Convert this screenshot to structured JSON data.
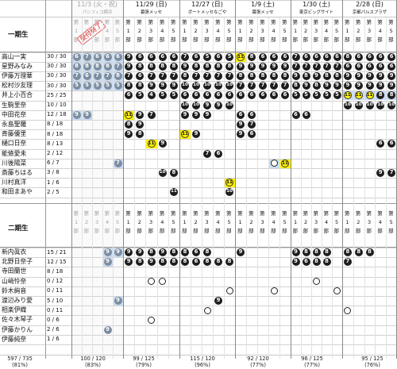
{
  "colors": {
    "blue_cell": "#c9dcf2",
    "yellow_cell": "#fff200",
    "grey_marker": "#7c8da0",
    "dark_marker": "#1e1e1e",
    "completed_text": "#a2a2a2",
    "grid_line": "#999999",
    "text": "#111111"
  },
  "events": [
    {
      "date": "11/3 (火・祝)",
      "venue": "パシフィコ横浜",
      "completed": true
    },
    {
      "date": "11/29 (日)",
      "venue": "幕張メッセ",
      "completed": false
    },
    {
      "date": "12/27 (日)",
      "venue": "ポートメッセなごや",
      "completed": false
    },
    {
      "date": "1/9 (土)",
      "venue": "幕張メッセ",
      "completed": false
    },
    {
      "date": "1/30 (土)",
      "venue": "東京ビッグサイト",
      "completed": false
    },
    {
      "date": "2/28 (日)",
      "venue": "京都パルスプラザ",
      "completed": false
    }
  ],
  "stamp_text": "受付終了",
  "part_label_chars": [
    "第",
    "1",
    "部"
  ],
  "part_numbers": [
    "1",
    "2",
    "3",
    "4",
    "5"
  ],
  "cell_legend": {
    "n": "number",
    "o": "open",
    "b": "blue",
    "y": "yellow"
  },
  "groups": [
    {
      "label": "一期生",
      "members": [
        {
          "name": "高山一実",
          "count": "30 / 30",
          "cells": [
            "g6:b",
            "g7:b",
            "g6:b",
            "g6:b",
            "g6:b",
            "n9",
            "n6",
            "n6",
            "n6",
            "n6",
            "n7",
            "n6",
            "n5",
            "n6",
            "n5",
            "ny11",
            "n8",
            "n6",
            "n6",
            "n6",
            "n7",
            "n6",
            "n6",
            "n6",
            "n6",
            "n8",
            "n6",
            "n6",
            "n6",
            "n6"
          ]
        },
        {
          "name": "星野みなみ",
          "count": "30 / 30",
          "cells": [
            "g8:b",
            "g8:b",
            "g8:b",
            "g8:b",
            "g7:b",
            "n9",
            "n8",
            "n8",
            "n8",
            "n8",
            "n9",
            "n8",
            "n8",
            "n8",
            "n8",
            "n9",
            "n9",
            "n9",
            "n9",
            "n9",
            "n7",
            "n7",
            "n7",
            "n7",
            "n7",
            "n6",
            "n6",
            "n6",
            "n6",
            "n6"
          ]
        },
        {
          "name": "伊藤万理華",
          "count": "30 / 30",
          "cells": [
            "g7:b",
            "g6:b",
            "g7:b",
            "g7:b",
            "g8:b",
            "n7",
            "n6",
            "n7",
            "n7",
            "n7",
            "n8",
            "n7",
            "n7",
            "n7",
            "n7",
            "n8",
            "n8",
            "n8",
            "n8",
            "n8",
            "n9",
            "n8",
            "n9",
            "n8",
            "n8",
            "n9",
            "n9",
            "n9",
            "n9",
            "n9"
          ]
        },
        {
          "name": "松村沙友理",
          "count": "30 / 30",
          "cells": [
            "g5:b",
            "g5:b",
            "g5:b",
            "g5:b",
            "g5:b",
            "n8",
            "n8",
            "n9",
            "n9",
            "n9",
            "n10",
            "n10",
            "n10",
            "n10",
            "n10",
            "n7",
            "n7",
            "n7",
            "n7",
            "n7",
            "n8",
            "n9",
            "n8",
            "n9",
            "n9",
            "n9",
            "n9",
            "n9",
            "n9",
            "n9"
          ]
        },
        {
          "name": "井上小百合",
          "count": "25 / 25",
          "cells": [
            "",
            "",
            "",
            "",
            "",
            "n6",
            "n5",
            "n4",
            "n5",
            "n5",
            "n6",
            "n6",
            "n6",
            "n6",
            "n6",
            "n6",
            "n6",
            "n6",
            "n6",
            "n6",
            "n5",
            "n5",
            "n5",
            "n5",
            "n5",
            "ny11:b",
            "ny11:b",
            "ny11:b",
            "n8:b",
            "n8:b"
          ]
        },
        {
          "name": "生駒里奈",
          "count": "10 / 10",
          "cells": [
            "",
            "",
            "",
            "",
            "",
            "",
            "",
            "",
            "",
            "",
            "n10",
            "n10",
            "n9",
            "n9",
            "n10",
            "",
            "",
            "",
            "",
            "",
            "",
            "",
            "",
            "",
            "",
            "n10",
            "n10",
            "n10",
            "n10",
            "n10"
          ]
        },
        {
          "name": "中田花奈",
          "count": "12 / 18",
          "cells": [
            "g9:b",
            "g9:b",
            "",
            "",
            "",
            "ny11",
            "n9",
            "n7",
            "",
            "",
            "n9",
            "n9",
            "n9",
            "",
            "",
            "n6",
            "n6",
            "",
            "",
            "",
            "n6",
            "n6",
            "",
            "",
            "",
            "",
            "",
            "",
            "",
            ""
          ]
        },
        {
          "name": "永島聖羅",
          "count": "8 / 18",
          "cells": [
            "",
            "",
            "",
            "",
            "",
            "n8",
            "n9",
            "",
            "",
            "",
            "",
            "",
            "",
            "",
            "",
            "n9",
            "n7",
            "",
            "",
            "",
            "",
            "",
            "",
            "",
            "",
            "",
            "",
            "",
            "",
            ""
          ]
        },
        {
          "name": "斉藤優里",
          "count": "8 / 18",
          "cells": [
            "",
            "",
            "",
            "",
            "",
            "n9",
            "n8",
            "",
            "",
            "",
            "ny11",
            "n9",
            "",
            "",
            "",
            "n9",
            "n6",
            "",
            "",
            "",
            "",
            "",
            "",
            "",
            "",
            "",
            "",
            "",
            "",
            ""
          ]
        },
        {
          "name": "樋口日奈",
          "count": "8 / 13",
          "cells": [
            "",
            "",
            "",
            "",
            "",
            "",
            "",
            "ny11",
            "n9",
            "",
            "",
            "",
            "",
            "",
            "",
            "",
            "",
            "",
            "",
            "",
            "",
            "",
            "",
            "",
            "",
            "",
            "",
            "",
            "n6",
            "n6"
          ]
        },
        {
          "name": "能條愛未",
          "count": "2 / 12",
          "cells": [
            "",
            "",
            "",
            "",
            "",
            "",
            "",
            "",
            "",
            "",
            "",
            "",
            "n7",
            "n6",
            "",
            "",
            "",
            "",
            "",
            "",
            "",
            "",
            "",
            "",
            "",
            "",
            "",
            "",
            "",
            ""
          ]
        },
        {
          "name": "川後陽菜",
          "count": "6 / 7",
          "cells": [
            "",
            "",
            "",
            "",
            "g7:b",
            "",
            "",
            "",
            "",
            "",
            "",
            "",
            "",
            "",
            "",
            "",
            "",
            "",
            "o:b",
            "ny11",
            "",
            "",
            "",
            "",
            "",
            "",
            "",
            "",
            "",
            ""
          ]
        },
        {
          "name": "斎藤ちはる",
          "count": "3 / 8",
          "cells": [
            "",
            "",
            "",
            "",
            "",
            "",
            "",
            "",
            "n10",
            "n8",
            "",
            "",
            "",
            "",
            "",
            "",
            "",
            "",
            "",
            "",
            "",
            "",
            "",
            "",
            "",
            "",
            "",
            "",
            "n9",
            "n7"
          ]
        },
        {
          "name": "川村真洋",
          "count": "1 / 6",
          "cells": [
            "",
            "",
            "",
            "",
            "",
            "",
            "",
            "",
            "",
            "",
            "",
            "",
            "",
            "",
            "ny11",
            "",
            "",
            "",
            "",
            "",
            "",
            "",
            "",
            "",
            "",
            "",
            "",
            "",
            "",
            ""
          ]
        },
        {
          "name": "和田まあや",
          "count": "2 / 5",
          "cells": [
            "",
            "",
            "",
            "",
            "",
            "",
            "",
            "",
            "",
            "n11",
            "",
            "",
            "",
            "",
            "n10",
            "",
            "",
            "",
            "",
            "",
            "",
            "",
            "",
            "",
            "",
            "",
            "",
            "",
            "",
            ""
          ]
        }
      ]
    },
    {
      "label": "二期生",
      "members": [
        {
          "name": "新内眞衣",
          "count": "15 / 21",
          "cells": [
            "",
            "",
            "",
            "g9:b",
            "g9:b",
            "n9",
            "n9",
            "n8",
            "n9",
            "n8",
            "n8",
            "n6",
            "n8",
            "",
            "",
            "n9",
            "",
            "",
            "",
            "",
            "n9",
            "n8",
            "n8",
            "n8",
            "",
            "n8",
            "n8",
            "n8",
            "",
            ""
          ]
        },
        {
          "name": "北野日奈子",
          "count": "12 / 15",
          "cells": [
            "",
            "",
            "",
            "g9:b",
            "",
            "n9",
            "n8",
            "n9",
            "n8",
            "n8",
            "n8",
            "n6",
            "n8",
            "n8",
            "n8",
            "",
            "",
            "",
            "",
            "",
            "n9",
            "n6",
            "n8",
            "n8",
            "",
            "n7",
            "",
            "",
            "",
            ""
          ]
        },
        {
          "name": "寺田蘭世",
          "count": "8 / 18",
          "cells": [
            "",
            "",
            "",
            "",
            "",
            "",
            "",
            "",
            "",
            "",
            "",
            "",
            "",
            "",
            "",
            "",
            "",
            "",
            "",
            "",
            "",
            "",
            "",
            "",
            "",
            "",
            "",
            "",
            "",
            ""
          ]
        },
        {
          "name": "山﨑怜奈",
          "count": "0 / 12",
          "cells": [
            "",
            "",
            "",
            "",
            "",
            "",
            "",
            "o",
            "o",
            "",
            "",
            "",
            "",
            "",
            "",
            "",
            "",
            "",
            "",
            "",
            "",
            "",
            "o",
            "",
            "",
            "",
            "",
            "",
            "",
            ""
          ]
        },
        {
          "name": "鈴木絢音",
          "count": "0 / 11",
          "cells": [
            "",
            "",
            "",
            "",
            "",
            "",
            "",
            "",
            "",
            "",
            "",
            "",
            "",
            "",
            "o",
            "",
            "",
            "",
            "o",
            "",
            "",
            "",
            "",
            "",
            "o",
            "",
            "",
            "",
            "",
            ""
          ]
        },
        {
          "name": "渡辺みり愛",
          "count": "5 / 10",
          "cells": [
            "",
            "",
            "",
            "",
            "g9:b",
            "",
            "",
            "",
            "",
            "",
            "",
            "",
            "",
            "n9",
            "",
            "",
            "",
            "",
            "",
            "",
            "",
            "",
            "",
            "",
            "",
            "",
            "",
            "",
            "",
            ""
          ]
        },
        {
          "name": "相楽伊織",
          "count": "0 / 11",
          "cells": [
            "",
            "",
            "",
            "",
            "",
            "",
            "",
            "",
            "",
            "",
            "",
            "",
            "o",
            "",
            "",
            "",
            "",
            "",
            "",
            "",
            "",
            "",
            "",
            "",
            "",
            "o",
            "",
            "",
            "",
            ""
          ]
        },
        {
          "name": "佐々木琴子",
          "count": "0 / 6",
          "cells": [
            "",
            "",
            "",
            "",
            "",
            "",
            "",
            "o",
            "",
            "",
            "",
            "",
            "",
            "",
            "",
            "",
            "",
            "",
            "",
            "",
            "",
            "",
            "",
            "",
            "",
            "",
            "",
            "",
            "",
            ""
          ]
        },
        {
          "name": "伊藤かりん",
          "count": "2 / 6",
          "cells": [
            "",
            "",
            "",
            "g9",
            "",
            "",
            "",
            "",
            "",
            "",
            "",
            "",
            "",
            "",
            "",
            "",
            "",
            "",
            "",
            "",
            "",
            "",
            "",
            "",
            "",
            "",
            "",
            "",
            "",
            ""
          ]
        },
        {
          "name": "伊藤純奈",
          "count": "1 / 6",
          "cells": [
            "",
            "",
            "",
            "",
            "",
            "",
            "",
            "",
            "",
            "",
            "",
            "",
            "",
            "",
            "",
            "",
            "",
            "",
            "",
            "",
            "",
            "",
            "",
            "",
            "",
            "",
            "",
            "",
            "",
            ""
          ]
        }
      ]
    }
  ],
  "totals": [
    {
      "value": "597 / 735",
      "pct": "(81%)"
    },
    {
      "value": "100 / 120",
      "pct": "(83%)"
    },
    {
      "value": "99 / 125",
      "pct": "(79%)"
    },
    {
      "value": "115 / 120",
      "pct": "(96%)"
    },
    {
      "value": "92 / 120",
      "pct": "(77%)"
    },
    {
      "value": "96 / 125",
      "pct": "(77%)"
    },
    {
      "value": "95 / 125",
      "pct": "(76%)"
    }
  ]
}
